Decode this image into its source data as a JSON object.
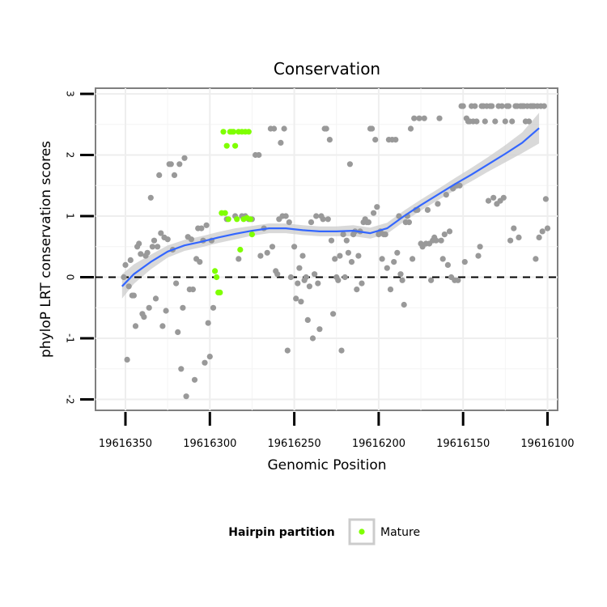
{
  "chart_data": {
    "type": "scatter",
    "title": "Conservation",
    "xlabel": "Genomic Position",
    "ylabel": "phyloP LRT conservation scores",
    "xlim": [
      19616355,
      19616095
    ],
    "x_reversed": true,
    "ylim": [
      -2.2,
      3.1
    ],
    "x_ticks": [
      19616350,
      19616300,
      19616250,
      19616200,
      19616150,
      19616100
    ],
    "x_tick_labels": [
      "19616350",
      "19616300",
      "19616250",
      "19616200",
      "19616150",
      "19616100"
    ],
    "y_ticks": [
      -2,
      -1,
      0,
      1,
      2,
      3
    ],
    "y_tick_labels": [
      "-2",
      "-1",
      "0",
      "1",
      "2",
      "3"
    ],
    "reference_line": {
      "y": 0,
      "style": "dashed",
      "color": "#000000"
    },
    "grid": true,
    "legend": {
      "title": "Hairpin partition",
      "placement": "bottom",
      "entries": [
        {
          "label": "Mature",
          "color": "#7fff00"
        }
      ]
    },
    "colors": {
      "other": "#999999",
      "mature": "#7fff00",
      "smooth": "#3366ff",
      "band": "#cccccc"
    },
    "series": [
      {
        "name": "Other",
        "points": [
          [
            19616351,
            0.0
          ],
          [
            19616350,
            0.2
          ],
          [
            19616349,
            -1.35
          ],
          [
            19616348,
            -0.15
          ],
          [
            19616347,
            0.28
          ],
          [
            19616346,
            -0.3
          ],
          [
            19616345,
            -0.3
          ],
          [
            19616344,
            -0.8
          ],
          [
            19616343,
            0.5
          ],
          [
            19616342,
            0.55
          ],
          [
            19616341,
            0.38
          ],
          [
            19616340,
            -0.6
          ],
          [
            19616339,
            -0.65
          ],
          [
            19616338,
            0.35
          ],
          [
            19616337,
            0.4
          ],
          [
            19616336,
            -0.5
          ],
          [
            19616335,
            1.3
          ],
          [
            19616334,
            0.5
          ],
          [
            19616333,
            0.6
          ],
          [
            19616332,
            -0.35
          ],
          [
            19616331,
            0.5
          ],
          [
            19616330,
            1.67
          ],
          [
            19616329,
            0.72
          ],
          [
            19616328,
            -0.8
          ],
          [
            19616327,
            0.65
          ],
          [
            19616326,
            -0.55
          ],
          [
            19616325,
            0.62
          ],
          [
            19616324,
            1.85
          ],
          [
            19616323,
            1.85
          ],
          [
            19616322,
            0.45
          ],
          [
            19616321,
            1.67
          ],
          [
            19616320,
            -0.1
          ],
          [
            19616319,
            -0.9
          ],
          [
            19616318,
            1.85
          ],
          [
            19616317,
            -1.5
          ],
          [
            19616316,
            -0.5
          ],
          [
            19616315,
            1.95
          ],
          [
            19616314,
            -1.95
          ],
          [
            19616313,
            0.66
          ],
          [
            19616312,
            -0.2
          ],
          [
            19616311,
            0.62
          ],
          [
            19616310,
            -0.2
          ],
          [
            19616309,
            -1.68
          ],
          [
            19616308,
            0.3
          ],
          [
            19616307,
            0.8
          ],
          [
            19616306,
            0.25
          ],
          [
            19616305,
            0.8
          ],
          [
            19616304,
            0.6
          ],
          [
            19616303,
            -1.4
          ],
          [
            19616302,
            0.85
          ],
          [
            19616301,
            -0.75
          ],
          [
            19616300,
            -1.3
          ],
          [
            19616299,
            0.6
          ],
          [
            19616298,
            -0.5
          ],
          [
            19616290,
            0.95
          ],
          [
            19616285,
            1.0
          ],
          [
            19616283,
            0.3
          ],
          [
            19616281,
            1.0
          ],
          [
            19616279,
            1.0
          ],
          [
            19616277,
            0.95
          ],
          [
            19616275,
            0.95
          ],
          [
            19616273,
            2.0
          ],
          [
            19616271,
            2.0
          ],
          [
            19616270,
            0.35
          ],
          [
            19616268,
            0.8
          ],
          [
            19616266,
            0.4
          ],
          [
            19616264,
            2.43
          ],
          [
            19616263,
            0.5
          ],
          [
            19616262,
            2.43
          ],
          [
            19616261,
            0.1
          ],
          [
            19616260,
            0.05
          ],
          [
            19616259,
            0.95
          ],
          [
            19616258,
            2.2
          ],
          [
            19616257,
            1.0
          ],
          [
            19616256,
            2.43
          ],
          [
            19616255,
            1.0
          ],
          [
            19616254,
            -1.2
          ],
          [
            19616253,
            0.9
          ],
          [
            19616252,
            0.0
          ],
          [
            19616250,
            0.5
          ],
          [
            19616249,
            -0.35
          ],
          [
            19616248,
            -0.1
          ],
          [
            19616247,
            0.15
          ],
          [
            19616246,
            -0.4
          ],
          [
            19616245,
            0.35
          ],
          [
            19616244,
            -0.05
          ],
          [
            19616243,
            0.0
          ],
          [
            19616242,
            -0.7
          ],
          [
            19616241,
            -0.15
          ],
          [
            19616240,
            0.9
          ],
          [
            19616239,
            -1.0
          ],
          [
            19616238,
            0.05
          ],
          [
            19616237,
            1.0
          ],
          [
            19616236,
            -0.1
          ],
          [
            19616235,
            -0.85
          ],
          [
            19616234,
            1.0
          ],
          [
            19616233,
            0.95
          ],
          [
            19616232,
            2.43
          ],
          [
            19616231,
            2.43
          ],
          [
            19616230,
            0.95
          ],
          [
            19616229,
            2.25
          ],
          [
            19616228,
            0.6
          ],
          [
            19616227,
            -0.6
          ],
          [
            19616226,
            0.3
          ],
          [
            19616225,
            0.0
          ],
          [
            19616224,
            -0.05
          ],
          [
            19616223,
            0.35
          ],
          [
            19616222,
            -1.2
          ],
          [
            19616221,
            0.7
          ],
          [
            19616220,
            0.0
          ],
          [
            19616219,
            0.6
          ],
          [
            19616218,
            0.4
          ],
          [
            19616217,
            1.85
          ],
          [
            19616216,
            0.25
          ],
          [
            19616215,
            0.7
          ],
          [
            19616214,
            0.75
          ],
          [
            19616213,
            -0.2
          ],
          [
            19616212,
            0.35
          ],
          [
            19616211,
            0.75
          ],
          [
            19616210,
            -0.1
          ],
          [
            19616209,
            0.9
          ],
          [
            19616208,
            0.95
          ],
          [
            19616207,
            0.9
          ],
          [
            19616206,
            0.9
          ],
          [
            19616205,
            2.43
          ],
          [
            19616204,
            2.43
          ],
          [
            19616203,
            1.05
          ],
          [
            19616202,
            2.25
          ],
          [
            19616201,
            1.15
          ],
          [
            19616200,
            0.7
          ],
          [
            19616199,
            0.75
          ],
          [
            19616198,
            0.3
          ],
          [
            19616197,
            0.7
          ],
          [
            19616196,
            0.7
          ],
          [
            19616195,
            0.15
          ],
          [
            19616194,
            2.25
          ],
          [
            19616193,
            -0.2
          ],
          [
            19616192,
            2.25
          ],
          [
            19616191,
            0.25
          ],
          [
            19616190,
            2.25
          ],
          [
            19616189,
            0.4
          ],
          [
            19616188,
            1.0
          ],
          [
            19616187,
            0.05
          ],
          [
            19616186,
            -0.05
          ],
          [
            19616185,
            -0.45
          ],
          [
            19616184,
            0.9
          ],
          [
            19616183,
            1.0
          ],
          [
            19616182,
            0.9
          ],
          [
            19616181,
            2.43
          ],
          [
            19616180,
            0.3
          ],
          [
            19616179,
            2.6
          ],
          [
            19616178,
            1.1
          ],
          [
            19616177,
            1.1
          ],
          [
            19616176,
            2.6
          ],
          [
            19616175,
            0.55
          ],
          [
            19616174,
            0.5
          ],
          [
            19616173,
            2.6
          ],
          [
            19616172,
            0.55
          ],
          [
            19616171,
            1.1
          ],
          [
            19616170,
            0.55
          ],
          [
            19616169,
            -0.05
          ],
          [
            19616168,
            0.6
          ],
          [
            19616167,
            0.65
          ],
          [
            19616166,
            0.6
          ],
          [
            19616165,
            1.2
          ],
          [
            19616164,
            2.6
          ],
          [
            19616163,
            0.6
          ],
          [
            19616162,
            0.3
          ],
          [
            19616161,
            0.7
          ],
          [
            19616160,
            1.35
          ],
          [
            19616159,
            0.2
          ],
          [
            19616158,
            0.75
          ],
          [
            19616157,
            0.0
          ],
          [
            19616156,
            1.45
          ],
          [
            19616155,
            -0.05
          ],
          [
            19616154,
            1.5
          ],
          [
            19616153,
            -0.05
          ],
          [
            19616152,
            1.5
          ],
          [
            19616151,
            2.8
          ],
          [
            19616150,
            2.8
          ],
          [
            19616149,
            0.25
          ],
          [
            19616148,
            2.6
          ],
          [
            19616147,
            2.55
          ],
          [
            19616146,
            2.55
          ],
          [
            19616145,
            2.8
          ],
          [
            19616144,
            2.55
          ],
          [
            19616143,
            2.8
          ],
          [
            19616142,
            2.55
          ],
          [
            19616141,
            0.35
          ],
          [
            19616140,
            0.5
          ],
          [
            19616139,
            2.8
          ],
          [
            19616138,
            2.8
          ],
          [
            19616137,
            2.55
          ],
          [
            19616136,
            2.8
          ],
          [
            19616135,
            1.25
          ],
          [
            19616134,
            2.8
          ],
          [
            19616133,
            2.8
          ],
          [
            19616132,
            1.3
          ],
          [
            19616131,
            2.55
          ],
          [
            19616130,
            1.2
          ],
          [
            19616129,
            2.8
          ],
          [
            19616128,
            1.25
          ],
          [
            19616127,
            2.8
          ],
          [
            19616126,
            1.3
          ],
          [
            19616125,
            2.55
          ],
          [
            19616124,
            2.8
          ],
          [
            19616123,
            2.8
          ],
          [
            19616122,
            0.6
          ],
          [
            19616121,
            2.55
          ],
          [
            19616120,
            0.8
          ],
          [
            19616119,
            2.8
          ],
          [
            19616118,
            2.8
          ],
          [
            19616117,
            0.65
          ],
          [
            19616116,
            2.8
          ],
          [
            19616115,
            2.8
          ],
          [
            19616114,
            2.8
          ],
          [
            19616113,
            2.55
          ],
          [
            19616112,
            2.8
          ],
          [
            19616111,
            2.55
          ],
          [
            19616110,
            2.8
          ],
          [
            19616109,
            2.8
          ],
          [
            19616108,
            2.8
          ],
          [
            19616107,
            0.3
          ],
          [
            19616106,
            2.8
          ],
          [
            19616105,
            0.65
          ],
          [
            19616104,
            2.8
          ],
          [
            19616103,
            0.75
          ],
          [
            19616102,
            2.8
          ],
          [
            19616101,
            1.28
          ],
          [
            19616100,
            0.8
          ]
        ]
      },
      {
        "name": "Mature",
        "points": [
          [
            19616297,
            0.1
          ],
          [
            19616296,
            0.0
          ],
          [
            19616295,
            -0.25
          ],
          [
            19616294,
            -0.25
          ],
          [
            19616293,
            1.05
          ],
          [
            19616292,
            2.38
          ],
          [
            19616291,
            1.05
          ],
          [
            19616290,
            2.15
          ],
          [
            19616289,
            0.95
          ],
          [
            19616288,
            2.38
          ],
          [
            19616287,
            2.38
          ],
          [
            19616286,
            2.38
          ],
          [
            19616285,
            2.15
          ],
          [
            19616284,
            0.95
          ],
          [
            19616283,
            2.38
          ],
          [
            19616282,
            0.45
          ],
          [
            19616281,
            2.38
          ],
          [
            19616280,
            0.95
          ],
          [
            19616279,
            2.38
          ],
          [
            19616278,
            0.97
          ],
          [
            19616277,
            2.38
          ],
          [
            19616276,
            0.95
          ],
          [
            19616275,
            0.7
          ]
        ]
      }
    ],
    "smooth": {
      "x": [
        19616352,
        19616345,
        19616335,
        19616325,
        19616315,
        19616305,
        19616295,
        19616285,
        19616275,
        19616265,
        19616255,
        19616245,
        19616235,
        19616225,
        19616215,
        19616205,
        19616195,
        19616185,
        19616175,
        19616165,
        19616155,
        19616145,
        19616135,
        19616125,
        19616115,
        19616105
      ],
      "y": [
        -0.15,
        0.05,
        0.25,
        0.42,
        0.52,
        0.58,
        0.65,
        0.71,
        0.76,
        0.8,
        0.8,
        0.77,
        0.75,
        0.75,
        0.76,
        0.72,
        0.8,
        1.0,
        1.18,
        1.35,
        1.52,
        1.68,
        1.85,
        2.02,
        2.2,
        2.44
      ],
      "se": [
        0.2,
        0.16,
        0.12,
        0.1,
        0.09,
        0.09,
        0.09,
        0.09,
        0.08,
        0.08,
        0.08,
        0.08,
        0.08,
        0.08,
        0.09,
        0.09,
        0.09,
        0.09,
        0.09,
        0.09,
        0.1,
        0.11,
        0.12,
        0.14,
        0.17,
        0.25
      ]
    }
  }
}
